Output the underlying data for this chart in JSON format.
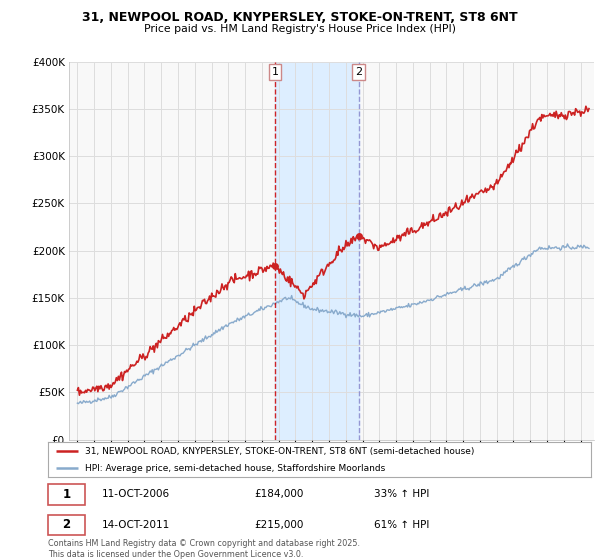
{
  "title1": "31, NEWPOOL ROAD, KNYPERSLEY, STOKE-ON-TRENT, ST8 6NT",
  "title2": "Price paid vs. HM Land Registry's House Price Index (HPI)",
  "legend_line1": "31, NEWPOOL ROAD, KNYPERSLEY, STOKE-ON-TRENT, ST8 6NT (semi-detached house)",
  "legend_line2": "HPI: Average price, semi-detached house, Staffordshire Moorlands",
  "transaction1_date": "11-OCT-2006",
  "transaction1_price": "£184,000",
  "transaction1_hpi": "33% ↑ HPI",
  "transaction2_date": "14-OCT-2011",
  "transaction2_price": "£215,000",
  "transaction2_hpi": "61% ↑ HPI",
  "footer": "Contains HM Land Registry data © Crown copyright and database right 2025.\nThis data is licensed under the Open Government Licence v3.0.",
  "vline1_x": 2006.78,
  "vline2_x": 2011.78,
  "vline1_color": "#cc0000",
  "vline2_color": "#8888cc",
  "transaction1_point_x": 2006.78,
  "transaction1_point_y": 184000,
  "transaction2_point_x": 2011.78,
  "transaction2_point_y": 215000,
  "ylim": [
    0,
    400000
  ],
  "xlim_start": 1994.5,
  "xlim_end": 2025.8,
  "shade_color": "#ddeeff",
  "prop_color": "#cc2222",
  "hpi_color": "#88aacc",
  "grid_color": "#dddddd",
  "bg_color": "#f8f8f8"
}
